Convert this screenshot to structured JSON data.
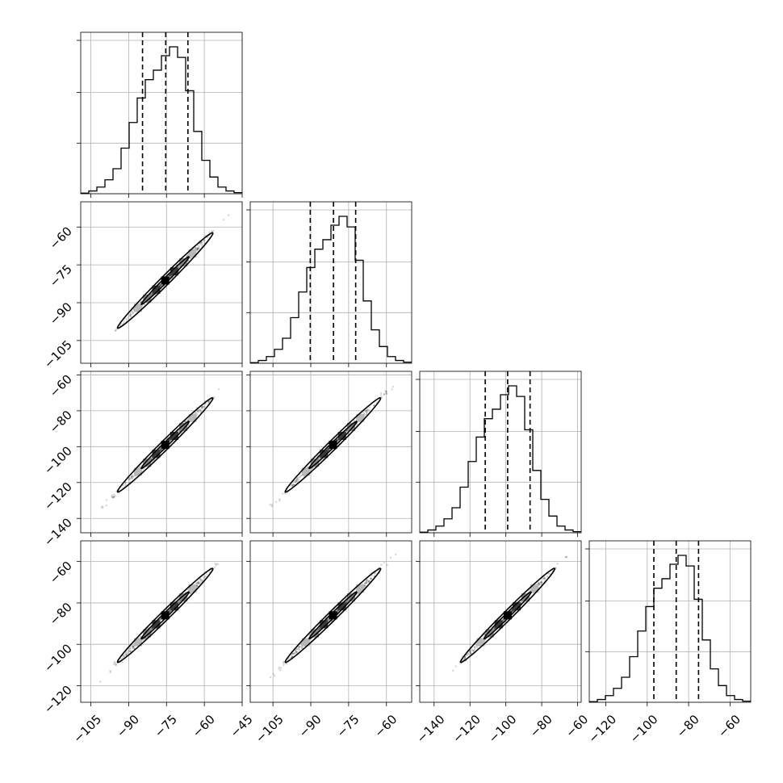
{
  "chart_data": {
    "type": "corner",
    "grid": true,
    "params": [
      {
        "min": -109,
        "max": -45,
        "ticks": [
          -105,
          -90,
          -75,
          -60,
          -45
        ],
        "tick_labels": [
          "−105",
          "−90",
          "−75",
          "−60",
          "−45"
        ],
        "q16": -84.5,
        "q50": -75.3,
        "q84": -66.5,
        "hist_bins": [
          -109,
          -105.8,
          -102.6,
          -99.4,
          -96.2,
          -93,
          -89.8,
          -86.6,
          -83.4,
          -80.2,
          -77,
          -73.8,
          -70.6,
          -67.4,
          -64.2,
          -61,
          -57.8,
          -54.6,
          -51.4,
          -48.2,
          -45
        ],
        "hist_counts": [
          1,
          5,
          12,
          25,
          45,
          82,
          128,
          172,
          205,
          222,
          248,
          264,
          245,
          185,
          112,
          60,
          30,
          12,
          5,
          2
        ]
      },
      {
        "min": -114,
        "max": -50,
        "ticks": [
          -105,
          -90,
          -75,
          -60
        ],
        "tick_labels": [
          "−105",
          "−90",
          "−75",
          "−60"
        ],
        "q16": -90.2,
        "q50": -81,
        "q84": -72.2,
        "hist_bins": [
          -114,
          -110.8,
          -107.6,
          -104.4,
          -101.2,
          -98,
          -94.8,
          -91.6,
          -88.4,
          -85.2,
          -82,
          -78.8,
          -75.6,
          -72.4,
          -69.2,
          -66,
          -62.8,
          -59.6,
          -56.4,
          -53.2,
          -50
        ],
        "hist_counts": [
          1,
          5,
          12,
          25,
          45,
          82,
          128,
          172,
          205,
          222,
          248,
          264,
          245,
          185,
          112,
          60,
          30,
          12,
          5,
          2
        ]
      },
      {
        "min": -148,
        "max": -58,
        "ticks": [
          -140,
          -120,
          -100,
          -80,
          -60
        ],
        "tick_labels": [
          "−140",
          "−120",
          "−100",
          "−80",
          "−60"
        ],
        "q16": -111.5,
        "q50": -99,
        "q84": -86.5,
        "hist_bins": [
          -148,
          -143.5,
          -139,
          -134.5,
          -130,
          -125.5,
          -121,
          -116.5,
          -112,
          -107.5,
          -103,
          -98.5,
          -94,
          -89.5,
          -85,
          -80.5,
          -76,
          -71.5,
          -67,
          -62.5,
          -58
        ],
        "hist_counts": [
          1,
          5,
          12,
          25,
          45,
          82,
          128,
          172,
          205,
          222,
          248,
          264,
          245,
          185,
          112,
          60,
          30,
          12,
          5,
          2
        ]
      },
      {
        "min": -128,
        "max": -50,
        "ticks": [
          -120,
          -100,
          -80,
          -60
        ],
        "tick_labels": [
          "−120",
          "−100",
          "−80",
          "−60"
        ],
        "q16": -96.8,
        "q50": -86,
        "q84": -75.2,
        "hist_bins": [
          -128,
          -124.1,
          -120.2,
          -116.3,
          -112.4,
          -108.5,
          -104.6,
          -100.7,
          -96.8,
          -92.9,
          -89,
          -85.1,
          -81.2,
          -77.3,
          -73.4,
          -69.5,
          -65.6,
          -61.7,
          -57.8,
          -53.9,
          -50
        ],
        "hist_counts": [
          1,
          5,
          12,
          25,
          45,
          82,
          128,
          172,
          205,
          222,
          248,
          264,
          245,
          185,
          112,
          60,
          30,
          12,
          5,
          2
        ]
      }
    ]
  }
}
